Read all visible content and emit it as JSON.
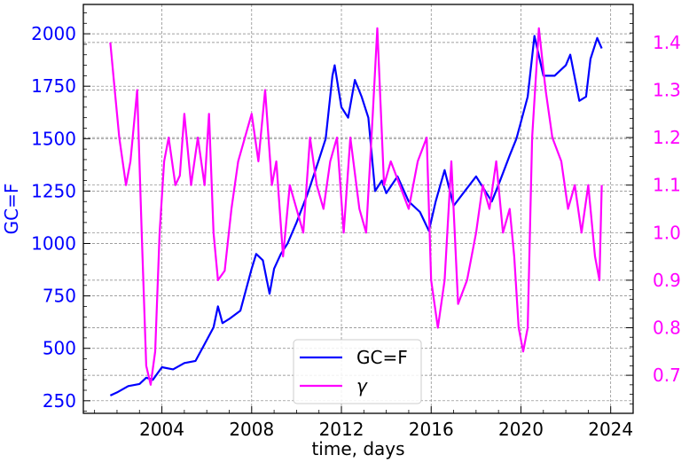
{
  "chart_data": {
    "type": "line",
    "xlabel": "time, days",
    "ylabel_left": "GC=F",
    "xlim": [
      2000.5,
      2025.0
    ],
    "ylim_left": [
      190,
      2140
    ],
    "ylim_right": [
      0.62,
      1.48
    ],
    "x_ticks": [
      2004,
      2008,
      2012,
      2016,
      2020,
      2024
    ],
    "y_left_ticks": [
      250,
      500,
      750,
      1000,
      1250,
      1500,
      1750,
      2000
    ],
    "y_right_ticks": [
      0.7,
      0.8,
      0.9,
      1.0,
      1.1,
      1.2,
      1.3,
      1.4
    ],
    "grid": true,
    "legend_position": "lower-center",
    "series": [
      {
        "name": "GC=F",
        "axis": "left",
        "color": "#0000ff",
        "x": [
          2001.7,
          2002.0,
          2002.5,
          2003.0,
          2003.3,
          2003.6,
          2004.0,
          2004.5,
          2005.0,
          2005.5,
          2005.9,
          2006.3,
          2006.5,
          2006.7,
          2007.0,
          2007.5,
          2008.0,
          2008.2,
          2008.5,
          2008.8,
          2009.0,
          2009.3,
          2009.6,
          2010.0,
          2010.5,
          2011.0,
          2011.3,
          2011.6,
          2011.7,
          2012.0,
          2012.3,
          2012.6,
          2012.9,
          2013.2,
          2013.5,
          2013.8,
          2014.0,
          2014.5,
          2015.0,
          2015.5,
          2015.9,
          2016.2,
          2016.6,
          2017.0,
          2017.5,
          2018.0,
          2018.7,
          2019.0,
          2019.5,
          2019.8,
          2020.0,
          2020.3,
          2020.6,
          2021.0,
          2021.5,
          2022.0,
          2022.2,
          2022.6,
          2022.9,
          2023.1,
          2023.4,
          2023.6
        ],
        "values": [
          275,
          290,
          320,
          330,
          360,
          350,
          410,
          400,
          430,
          440,
          520,
          600,
          700,
          620,
          640,
          680,
          880,
          950,
          920,
          760,
          880,
          950,
          1000,
          1100,
          1240,
          1400,
          1500,
          1800,
          1850,
          1650,
          1600,
          1780,
          1700,
          1600,
          1250,
          1300,
          1240,
          1320,
          1200,
          1150,
          1060,
          1200,
          1350,
          1180,
          1250,
          1320,
          1200,
          1280,
          1420,
          1500,
          1580,
          1700,
          1990,
          1800,
          1800,
          1850,
          1900,
          1680,
          1700,
          1880,
          1980,
          1930
        ]
      },
      {
        "name": "γ",
        "axis": "right",
        "color": "#ff00ff",
        "x": [
          2001.7,
          2001.9,
          2002.1,
          2002.4,
          2002.6,
          2002.9,
          2003.1,
          2003.3,
          2003.5,
          2003.7,
          2003.9,
          2004.1,
          2004.3,
          2004.6,
          2004.8,
          2005.0,
          2005.3,
          2005.6,
          2005.9,
          2006.1,
          2006.3,
          2006.5,
          2006.8,
          2007.1,
          2007.4,
          2007.7,
          2008.0,
          2008.3,
          2008.6,
          2008.9,
          2009.1,
          2009.4,
          2009.7,
          2010.0,
          2010.3,
          2010.6,
          2010.9,
          2011.2,
          2011.5,
          2011.8,
          2012.1,
          2012.4,
          2012.8,
          2013.1,
          2013.4,
          2013.6,
          2013.9,
          2014.2,
          2014.6,
          2015.0,
          2015.4,
          2015.8,
          2016.0,
          2016.3,
          2016.6,
          2016.9,
          2017.2,
          2017.6,
          2018.0,
          2018.3,
          2018.6,
          2018.9,
          2019.2,
          2019.5,
          2019.7,
          2019.9,
          2020.1,
          2020.3,
          2020.5,
          2020.8,
          2021.1,
          2021.4,
          2021.8,
          2022.1,
          2022.4,
          2022.7,
          2023.0,
          2023.3,
          2023.5,
          2023.6
        ],
        "values": [
          1.4,
          1.3,
          1.2,
          1.1,
          1.15,
          1.3,
          1.0,
          0.72,
          0.68,
          0.75,
          1.0,
          1.15,
          1.2,
          1.1,
          1.12,
          1.25,
          1.1,
          1.2,
          1.1,
          1.25,
          1.0,
          0.9,
          0.92,
          1.05,
          1.15,
          1.2,
          1.25,
          1.15,
          1.3,
          1.1,
          1.15,
          0.95,
          1.1,
          1.05,
          1.0,
          1.2,
          1.1,
          1.05,
          1.15,
          1.2,
          1.0,
          1.2,
          1.05,
          1.0,
          1.25,
          1.43,
          1.1,
          1.15,
          1.1,
          1.05,
          1.15,
          1.2,
          0.9,
          0.8,
          0.9,
          1.15,
          0.85,
          0.9,
          1.0,
          1.1,
          1.05,
          1.15,
          1.0,
          1.05,
          0.95,
          0.8,
          0.75,
          0.8,
          1.2,
          1.43,
          1.3,
          1.2,
          1.15,
          1.05,
          1.1,
          1.0,
          1.1,
          0.95,
          0.9,
          1.1
        ]
      }
    ]
  }
}
